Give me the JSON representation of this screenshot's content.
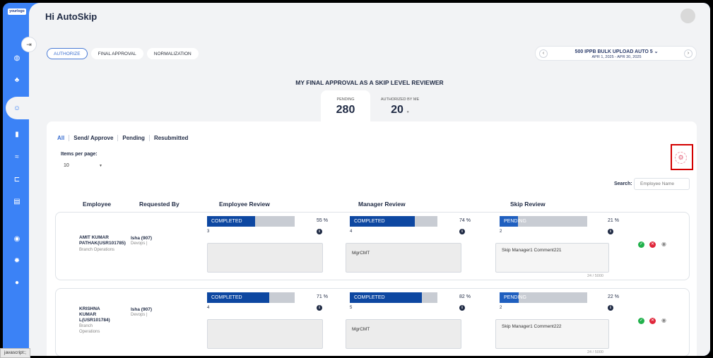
{
  "logo_text": "yourlogo",
  "header": {
    "greeting": "Hi AutoSkip"
  },
  "sidebar": {
    "items": [
      {
        "icon": "globe-icon",
        "glyph": "◍"
      },
      {
        "icon": "team-icon",
        "glyph": "♣"
      },
      {
        "icon": "people-review-icon",
        "glyph": "☺"
      },
      {
        "icon": "book-icon",
        "glyph": "▮"
      },
      {
        "icon": "handshake-icon",
        "glyph": "≈"
      },
      {
        "icon": "hierarchy-icon",
        "glyph": "⊏"
      },
      {
        "icon": "report-icon",
        "glyph": "▤"
      },
      {
        "icon": "eye-icon",
        "glyph": "◉"
      },
      {
        "icon": "gear-icon",
        "glyph": "✹"
      },
      {
        "icon": "user-icon",
        "glyph": "●"
      }
    ]
  },
  "top_tabs": [
    "AUTHORIZE",
    "FINAL APPROVAL",
    "NORMALIZATION"
  ],
  "cycle": {
    "name": "500 IPPB BULK UPLOAD AUTO 5",
    "dates": "APR 1, 2025 - APR 30, 2025"
  },
  "section_title": "MY FINAL APPROVAL AS A SKIP LEVEL REVIEWER",
  "stats": {
    "pending_label": "PENDING",
    "pending_value": "280",
    "authorized_label": "AUTHORIZED BY ME",
    "authorized_value": "20"
  },
  "filters": [
    "All",
    "Send/ Approve",
    "Pending",
    "Resubmitted"
  ],
  "items_per_page": {
    "label": "Items per page:",
    "value": "10"
  },
  "search": {
    "label": "Search:",
    "placeholder": "Employee Name"
  },
  "columns": [
    "Employee",
    "Requested By",
    "Employee Review",
    "Manager Review",
    "Skip Review"
  ],
  "rows": [
    {
      "employee_name": "AMIT KUMAR PATHAK(USR101785)",
      "employee_dept": "Branch Operations",
      "requested_by": "Isha (907)",
      "requested_dept": "Devops |",
      "employee_review": {
        "status": "COMPLETED",
        "percent": 55,
        "pct_text": "55 %",
        "count": "3"
      },
      "manager_review": {
        "status": "COMPLETED",
        "percent": 74,
        "pct_text": "74 %",
        "count": "4",
        "comment": "MgrCMT"
      },
      "skip_review": {
        "status": "PENDING",
        "percent": 21,
        "pct_text": "21 %",
        "count": "2",
        "comment": "Skip Manager1 Comment221",
        "char_count": "24 / 5000"
      }
    },
    {
      "employee_name": "KRISHNA KUMAR L(USR101784)",
      "employee_dept": "Branch Operations",
      "requested_by": "Isha (907)",
      "requested_dept": "Devops |",
      "employee_review": {
        "status": "COMPLETED",
        "percent": 71,
        "pct_text": "71 %",
        "count": "4"
      },
      "manager_review": {
        "status": "COMPLETED",
        "percent": 82,
        "pct_text": "82 %",
        "count": "5",
        "comment": "MgrCMT"
      },
      "skip_review": {
        "status": "PENDING",
        "percent": 22,
        "pct_text": "22 %",
        "count": "2",
        "comment": "Skip Manager1 Comment222",
        "char_count": "24 / 5000"
      }
    }
  ],
  "status_tip": "javascript:;",
  "colors": {
    "sidebar": "#3b82f6",
    "completed": "#0d47a1",
    "highlight": "#d30000"
  }
}
